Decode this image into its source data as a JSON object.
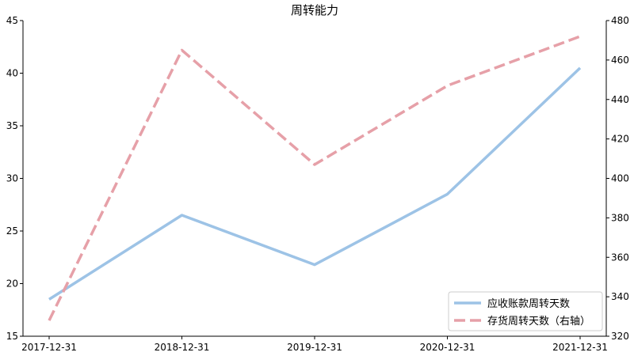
{
  "chart_data": {
    "type": "line",
    "title": "周转能力",
    "categories": [
      "2017-12-31",
      "2018-12-31",
      "2019-12-31",
      "2020-12-31",
      "2021-12-31"
    ],
    "left_axis": {
      "ylim": [
        15,
        45
      ],
      "ticks": [
        15,
        20,
        25,
        30,
        35,
        40,
        45
      ]
    },
    "right_axis": {
      "ylim": [
        320,
        480
      ],
      "ticks": [
        320,
        340,
        360,
        380,
        400,
        420,
        440,
        460,
        480
      ]
    },
    "series": [
      {
        "name": "应收账款周转天数",
        "axis": "left",
        "values": [
          18.5,
          26.5,
          21.8,
          28.5,
          40.5
        ],
        "color": "#9dc3e6",
        "dash": "solid"
      },
      {
        "name": "存货周转天数（右轴）",
        "axis": "right",
        "values": [
          328,
          465,
          407,
          447,
          472
        ],
        "color": "#e6a0a8",
        "dash": "dashed"
      }
    ],
    "grid": false,
    "legend_position": "bottom-right"
  }
}
